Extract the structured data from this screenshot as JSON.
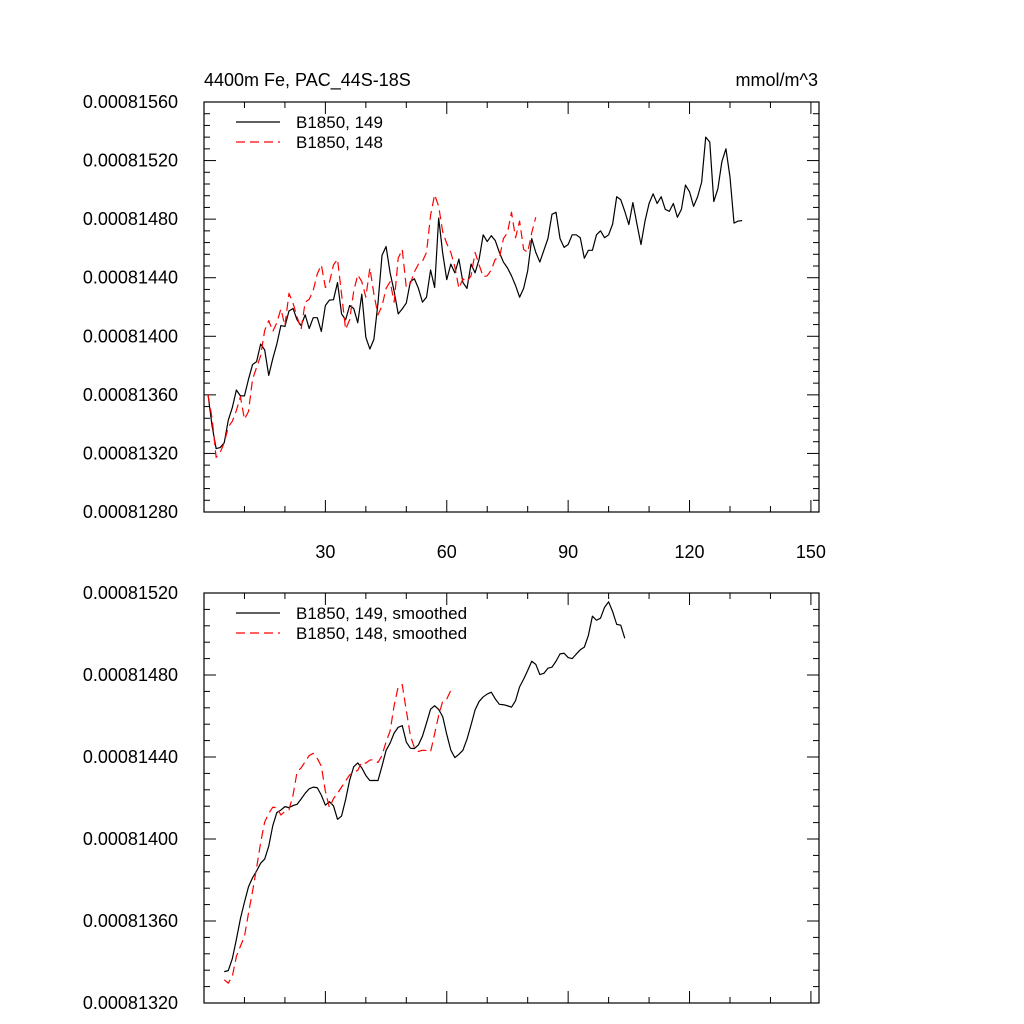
{
  "chart_data": [
    {
      "type": "line",
      "title": "4400m Fe, PAC_44S-18S",
      "units": "mmol/m^3",
      "xlim": [
        0,
        152
      ],
      "ylim": [
        0.0008128,
        0.0008156
      ],
      "xticks": [
        30,
        60,
        90,
        120,
        150
      ],
      "xtick_labels": [
        "30",
        "60",
        "90",
        "120",
        "150"
      ],
      "yticks": [
        0.0008128,
        0.0008132,
        0.0008136,
        0.000814,
        0.0008144,
        0.0008148,
        0.0008152,
        0.0008156
      ],
      "ytick_labels": [
        "0.00081280",
        "0.00081320",
        "0.00081360",
        "0.00081400",
        "0.00081440",
        "0.00081480",
        "0.00081520",
        "0.00081560"
      ],
      "legend_position": "top-left",
      "series": [
        {
          "name": "B1850, 149",
          "color": "#000000",
          "dash": "solid",
          "x_start": 1,
          "values": [
            0.0008136,
            0.000813387,
            0.000813233,
            0.00081324,
            0.000813273,
            0.000813427,
            0.000813513,
            0.000813633,
            0.000813593,
            0.000813593,
            0.000813707,
            0.000813807,
            0.000813827,
            0.000813947,
            0.000813907,
            0.000813733,
            0.000813847,
            0.000813947,
            0.000814073,
            0.000814067,
            0.000814173,
            0.00081419,
            0.000814113,
            0.000814073,
            0.000814147,
            0.000814053,
            0.000814127,
            0.000814127,
            0.000814033,
            0.00081421,
            0.000814247,
            0.00081425,
            0.000814367,
            0.000814153,
            0.000814113,
            0.00081421,
            0.00081419,
            0.000814093,
            0.000814287,
            0.000813993,
            0.000813913,
            0.00081398,
            0.000814227,
            0.000814553,
            0.000814613,
            0.000814433,
            0.000814307,
            0.000814153,
            0.000814187,
            0.000814227,
            0.000814373,
            0.000814393,
            0.000814327,
            0.000814233,
            0.000814267,
            0.000814453,
            0.000814333,
            0.000814807,
            0.000814567,
            0.000814387,
            0.000814493,
            0.000814433,
            0.000814527,
            0.000814367,
            0.000814327,
            0.000814493,
            0.000814433,
            0.000814527,
            0.000814693,
            0.000814647,
            0.000814687,
            0.000814653,
            0.000814573,
            0.000814507,
            0.000814467,
            0.000814413,
            0.000814347,
            0.000814267,
            0.000814327,
            0.000814447,
            0.000814667,
            0.000814573,
            0.000814507,
            0.000814587,
            0.000814667,
            0.000814833,
            0.000814847,
            0.000814667,
            0.000814607,
            0.000814627,
            0.000814693,
            0.000814693,
            0.000814673,
            0.000814533,
            0.000814587,
            0.000814587,
            0.000814693,
            0.00081472,
            0.000814673,
            0.000814693,
            0.000814767,
            0.000814953,
            0.000814933,
            0.000814853,
            0.000814763,
            0.000814913,
            0.000814767,
            0.000814627,
            0.000814787,
            0.000814907,
            0.000814973,
            0.000814907,
            0.000814953,
            0.000814867,
            0.000814853,
            0.000814907,
            0.000814813,
            0.000814867,
            0.000815033,
            0.000814987,
            0.000814887,
            0.000814953,
            0.000815053,
            0.00081536,
            0.000815327,
            0.00081492,
            0.000815007,
            0.000815193,
            0.00081528,
            0.000815087,
            0.000814773,
            0.000814787,
            0.00081479
          ]
        },
        {
          "name": "B1850, 148",
          "color": "#ff0000",
          "dash": "dashed",
          "x_start": 1,
          "values": [
            0.0008136,
            0.00081344,
            0.000813173,
            0.000813207,
            0.000813273,
            0.00081338,
            0.00081342,
            0.000813493,
            0.000813587,
            0.000813433,
            0.000813487,
            0.000813707,
            0.000813787,
            0.000813867,
            0.00081404,
            0.000814107,
            0.000814033,
            0.000814093,
            0.000814187,
            0.000814073,
            0.000814293,
            0.000814227,
            0.000814133,
            0.000814047,
            0.000814233,
            0.000814253,
            0.000814313,
            0.000814427,
            0.000814487,
            0.000814333,
            0.000814367,
            0.000814487,
            0.000814527,
            0.000814287,
            0.000814047,
            0.000814113,
            0.000814307,
            0.00081442,
            0.000814373,
            0.000814267,
            0.000814467,
            0.000814287,
            0.000814147,
            0.000814207,
            0.000814327,
            0.000814373,
            0.000814233,
            0.000814533,
            0.000814593,
            0.000814333,
            0.00081436,
            0.00081444,
            0.000814493,
            0.000814513,
            0.000814573,
            0.000814827,
            0.000814967,
            0.000814887,
            0.000814713,
            0.000814633,
            0.000814573,
            0.000814473,
            0.000814327,
            0.000814393,
            0.000814373,
            0.000814413,
            0.000814573,
            0.000814487,
            0.000814407,
            0.000814413,
            0.000814453,
            0.000814527,
            0.000814533,
            0.000814667,
            0.000814707,
            0.000814847,
            0.000814673,
            0.000814787,
            0.000814593,
            0.000814573,
            0.000814707,
            0.000814813
          ]
        }
      ]
    },
    {
      "type": "line",
      "title": "",
      "xlim": [
        0,
        152
      ],
      "ylim": [
        0.0008132,
        0.0008152
      ],
      "xticks": [
        30,
        60,
        90,
        120,
        150
      ],
      "yticks": [
        0.0008132,
        0.0008136,
        0.000814,
        0.0008144,
        0.0008148,
        0.0008152
      ],
      "ytick_labels": [
        "0.00081320",
        "0.00081360",
        "0.00081400",
        "0.00081440",
        "0.00081480",
        "0.00081520"
      ],
      "legend_position": "top-left",
      "series": [
        {
          "name": "B1850, 149, smoothed",
          "color": "#000000",
          "dash": "solid",
          "x_start": 5,
          "values": [
            0.000813353,
            0.000813358,
            0.000813416,
            0.00081351,
            0.000813611,
            0.000813692,
            0.000813767,
            0.000813811,
            0.000813844,
            0.000813882,
            0.000813902,
            0.000813965,
            0.000814065,
            0.000814129,
            0.000814141,
            0.000814158,
            0.000814153,
            0.000814163,
            0.000814169,
            0.000814195,
            0.000814223,
            0.000814245,
            0.000814253,
            0.00081425,
            0.000814214,
            0.000814165,
            0.000814182,
            0.000814162,
            0.000814096,
            0.000814112,
            0.000814192,
            0.000814287,
            0.000814352,
            0.000814371,
            0.000814347,
            0.00081431,
            0.000814285,
            0.000814286,
            0.000814285,
            0.000814356,
            0.000814432,
            0.000814468,
            0.000814517,
            0.000814545,
            0.000814553,
            0.000814473,
            0.000814443,
            0.000814441,
            0.000814459,
            0.000814502,
            0.000814566,
            0.000814633,
            0.00081465,
            0.000814632,
            0.000814597,
            0.00081451,
            0.000814434,
            0.000814397,
            0.000814413,
            0.000814433,
            0.000814487,
            0.000814556,
            0.00081463,
            0.000814671,
            0.000814693,
            0.000814707,
            0.000814716,
            0.000814683,
            0.000814657,
            0.000814655,
            0.00081465,
            0.000814643,
            0.000814675,
            0.000814742,
            0.00081478,
            0.000814822,
            0.000814867,
            0.000814852,
            0.000814802,
            0.000814808,
            0.000814833,
            0.000814838,
            0.000814867,
            0.000814903,
            0.000814906,
            0.000814885,
            0.00081488,
            0.000814902,
            0.000814923,
            0.000814936,
            0.000814993,
            0.000815087,
            0.000815067,
            0.000815077,
            0.00081513,
            0.000815157,
            0.000815109,
            0.000815047,
            0.000815043,
            0.000814979
          ]
        },
        {
          "name": "B1850, 148, smoothed",
          "color": "#ff0000",
          "dash": "dashed",
          "x_start": 5,
          "values": [
            0.000813313,
            0.000813297,
            0.00081333,
            0.000813427,
            0.000813477,
            0.000813525,
            0.000813639,
            0.000813745,
            0.00081386,
            0.000813982,
            0.000814083,
            0.000814125,
            0.000814155,
            0.000814153,
            0.000814117,
            0.000814135,
            0.000814143,
            0.000814213,
            0.000814327,
            0.000814347,
            0.000814377,
            0.000814407,
            0.000814418,
            0.000814393,
            0.000814355,
            0.000814233,
            0.000814152,
            0.000814197,
            0.000814223,
            0.000814253,
            0.000814283,
            0.000814313,
            0.000814325,
            0.000814335,
            0.000814375,
            0.00081437,
            0.000814385,
            0.000814387,
            0.000814373,
            0.000814408,
            0.000814474,
            0.000814527,
            0.000814652,
            0.000814743,
            0.000814753,
            0.000814627,
            0.000814505,
            0.000814445,
            0.000814427,
            0.000814433,
            0.000814432,
            0.000814425,
            0.000814513,
            0.000814603,
            0.000814672,
            0.000814683,
            0.000814725,
            0.000814723
          ]
        }
      ]
    }
  ]
}
